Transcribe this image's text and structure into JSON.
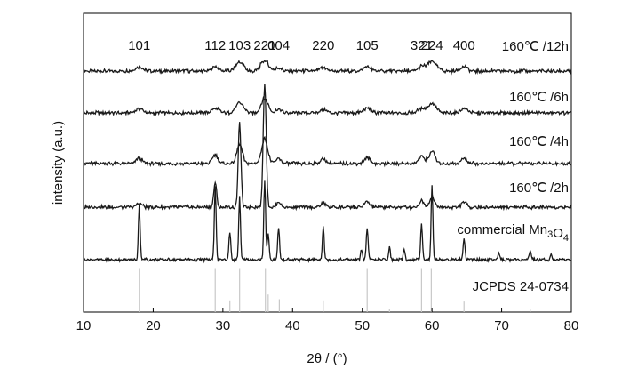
{
  "chart_data": {
    "type": "line",
    "xlabel": "2θ / (°)",
    "ylabel": "intensity (a.u.)",
    "xlim": [
      10,
      80
    ],
    "xticks": [
      10,
      20,
      30,
      40,
      50,
      60,
      70,
      80
    ],
    "grid": false,
    "peak_labels": [
      {
        "text": "101",
        "x": 18.0
      },
      {
        "text": "112",
        "x": 28.9
      },
      {
        "text": "103",
        "x": 32.4
      },
      {
        "text": "221",
        "x": 36.0
      },
      {
        "text": "004",
        "x": 38.0
      },
      {
        "text": "220",
        "x": 44.4
      },
      {
        "text": "105",
        "x": 50.7
      },
      {
        "text": "321",
        "x": 58.5
      },
      {
        "text": "224",
        "x": 60.0
      },
      {
        "text": "400",
        "x": 64.6
      }
    ],
    "series": [
      {
        "name": "160℃ /12h",
        "noise": 1.6,
        "peaks": [
          [
            18.0,
            5,
            0.7
          ],
          [
            28.9,
            5,
            0.7
          ],
          [
            32.4,
            10,
            0.8
          ],
          [
            36.0,
            12,
            0.8
          ],
          [
            38.0,
            4,
            0.6
          ],
          [
            44.4,
            4,
            0.7
          ],
          [
            50.7,
            5,
            0.7
          ],
          [
            58.5,
            5,
            0.7
          ],
          [
            60.0,
            11,
            0.9
          ],
          [
            64.6,
            5,
            0.7
          ]
        ]
      },
      {
        "name": "160℃ /6h",
        "noise": 1.6,
        "peaks": [
          [
            18.0,
            5,
            0.7
          ],
          [
            28.9,
            5,
            0.7
          ],
          [
            32.4,
            11,
            0.8
          ],
          [
            36.0,
            16,
            0.7
          ],
          [
            38.0,
            4,
            0.6
          ],
          [
            44.4,
            4,
            0.7
          ],
          [
            50.7,
            5,
            0.7
          ],
          [
            58.5,
            5,
            0.7
          ],
          [
            60.0,
            11,
            0.8
          ],
          [
            64.6,
            5,
            0.7
          ]
        ]
      },
      {
        "name": "160℃ /4h",
        "noise": 1.6,
        "peaks": [
          [
            18.0,
            6,
            0.6
          ],
          [
            28.9,
            10,
            0.55
          ],
          [
            32.4,
            22,
            0.55
          ],
          [
            36.0,
            28,
            0.6
          ],
          [
            38.0,
            6,
            0.5
          ],
          [
            44.4,
            5,
            0.6
          ],
          [
            50.7,
            6,
            0.6
          ],
          [
            58.5,
            8,
            0.6
          ],
          [
            60.0,
            14,
            0.6
          ],
          [
            64.6,
            6,
            0.6
          ]
        ]
      },
      {
        "name": "160℃ /2h",
        "noise": 1.6,
        "peaks": [
          [
            18.0,
            5,
            0.5
          ],
          [
            28.9,
            27,
            0.3
          ],
          [
            32.4,
            94,
            0.28
          ],
          [
            36.0,
            140,
            0.3
          ],
          [
            38.0,
            6,
            0.4
          ],
          [
            44.4,
            5,
            0.5
          ],
          [
            50.7,
            6,
            0.5
          ],
          [
            58.5,
            7,
            0.5
          ],
          [
            60.0,
            11,
            0.5
          ],
          [
            64.6,
            6,
            0.5
          ]
        ]
      },
      {
        "name": "commercial Mn3O4",
        "noise": 1.4,
        "peaks": [
          [
            18.0,
            62,
            0.18
          ],
          [
            28.9,
            83,
            0.18
          ],
          [
            31.0,
            32,
            0.18
          ],
          [
            32.4,
            70,
            0.18
          ],
          [
            36.0,
            90,
            0.18
          ],
          [
            36.5,
            30,
            0.18
          ],
          [
            38.0,
            37,
            0.18
          ],
          [
            44.4,
            38,
            0.18
          ],
          [
            49.9,
            12,
            0.18
          ],
          [
            50.7,
            36,
            0.18
          ],
          [
            53.9,
            14,
            0.18
          ],
          [
            56.0,
            12,
            0.18
          ],
          [
            58.5,
            42,
            0.18
          ],
          [
            60.0,
            84,
            0.18
          ],
          [
            64.6,
            24,
            0.18
          ],
          [
            69.6,
            7,
            0.18
          ],
          [
            74.1,
            9,
            0.18
          ],
          [
            77.1,
            6,
            0.18
          ]
        ]
      }
    ],
    "reference": {
      "name": "JCPDS 24-0734",
      "lines": [
        [
          18.0,
          0.75
        ],
        [
          28.9,
          0.75
        ],
        [
          31.0,
          0.2
        ],
        [
          32.4,
          0.75
        ],
        [
          36.1,
          0.75
        ],
        [
          36.5,
          0.3
        ],
        [
          38.1,
          0.22
        ],
        [
          44.4,
          0.2
        ],
        [
          50.7,
          0.75
        ],
        [
          53.9,
          0.05
        ],
        [
          58.5,
          0.75
        ],
        [
          59.9,
          0.75
        ],
        [
          64.6,
          0.18
        ],
        [
          74.1,
          0.05
        ]
      ]
    },
    "colors": {
      "trace": "#1a1a1a",
      "reference": "#c8c8c8",
      "axis": "#000000"
    }
  }
}
